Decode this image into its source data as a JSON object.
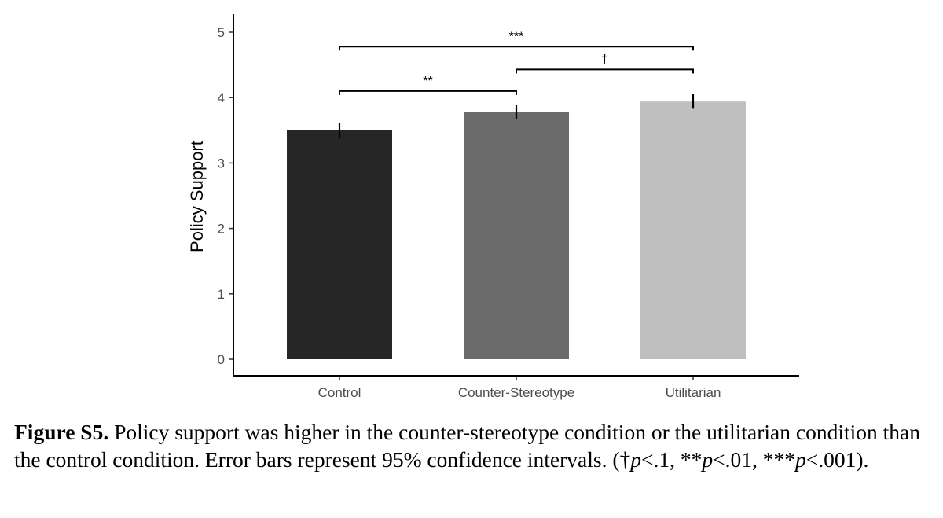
{
  "chart_data": {
    "type": "bar",
    "categories": [
      "Control",
      "Counter-Stereotype",
      "Utilitarian"
    ],
    "values": [
      3.5,
      3.78,
      3.94
    ],
    "error_low": [
      3.39,
      3.67,
      3.83
    ],
    "error_high": [
      3.61,
      3.89,
      4.05
    ],
    "bar_colors": [
      "#262626",
      "#6b6b6b",
      "#bfbfbf"
    ],
    "ylabel": "Policy Support",
    "xlabel": "",
    "ylim": [
      0,
      5.25
    ],
    "yticks": [
      "0",
      "1",
      "2",
      "3",
      "4",
      "5"
    ],
    "grid": false,
    "significance": [
      {
        "from": 0,
        "to": 1,
        "y": 4.1,
        "label": "**"
      },
      {
        "from": 1,
        "to": 2,
        "y": 4.43,
        "label": "†"
      },
      {
        "from": 0,
        "to": 2,
        "y": 4.78,
        "label": "***"
      }
    ]
  },
  "caption": {
    "figure_label": "Figure S5.",
    "text": "Policy support was higher in the counter-stereotype condition or the utilitarian condition than the control condition. Error bars represent 95% confidence intervals. (",
    "dagger": "†",
    "p1": "p",
    "t1": "<.1, ",
    "stars2": "**",
    "p2": "p",
    "t2": "<.01, ",
    "stars3": "***",
    "p3": "p",
    "t3": "<.001)."
  }
}
